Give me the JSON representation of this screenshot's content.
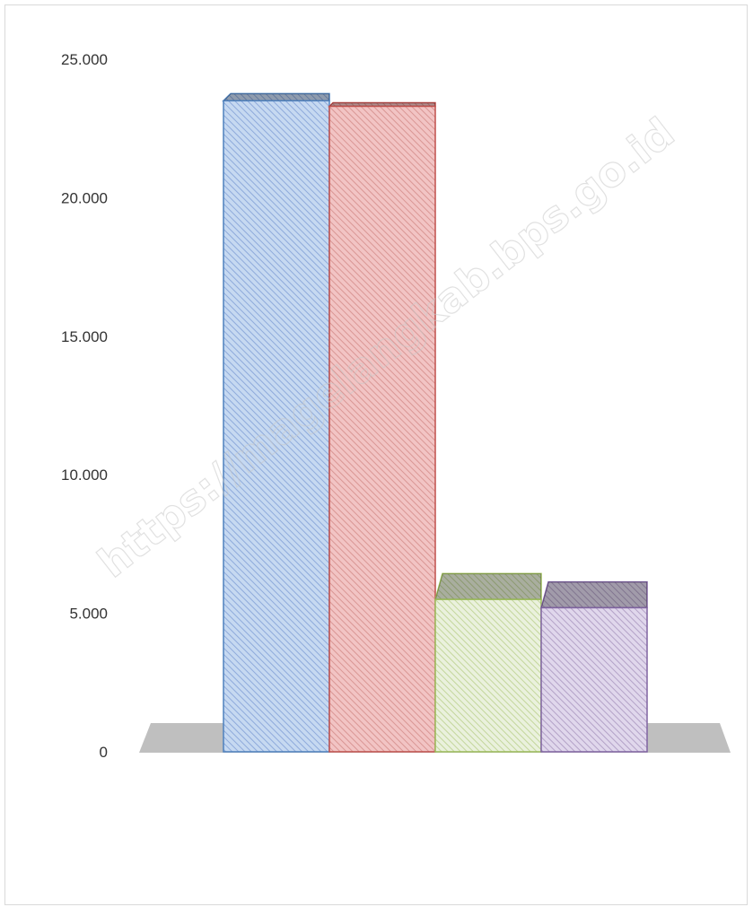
{
  "chart_data": {
    "type": "bar",
    "title": "",
    "xlabel": "",
    "ylabel": "",
    "ylim": [
      0,
      25000
    ],
    "yticks": [
      0,
      5000,
      10000,
      15000,
      20000,
      25000
    ],
    "ytick_labels": [
      "0",
      "5.000",
      "10.000",
      "15.000",
      "20.000",
      "25.000"
    ],
    "grid": false,
    "legend": "none",
    "three_d": true,
    "bars": [
      {
        "value": 23500,
        "face": "#c6d9f1",
        "edge": "#4f81bd",
        "hatch": "#8eaadb"
      },
      {
        "value": 23300,
        "face": "#f2c4c4",
        "edge": "#c0504d",
        "hatch": "#d99694"
      },
      {
        "value": 5500,
        "face": "#eaf1dd",
        "edge": "#9bbb59",
        "hatch": "#c3d69b"
      },
      {
        "value": 5200,
        "face": "#e0d7ec",
        "edge": "#8064a2",
        "hatch": "#b3a2c7"
      }
    ]
  },
  "watermark": "https://magelangkab.bps.go.id"
}
